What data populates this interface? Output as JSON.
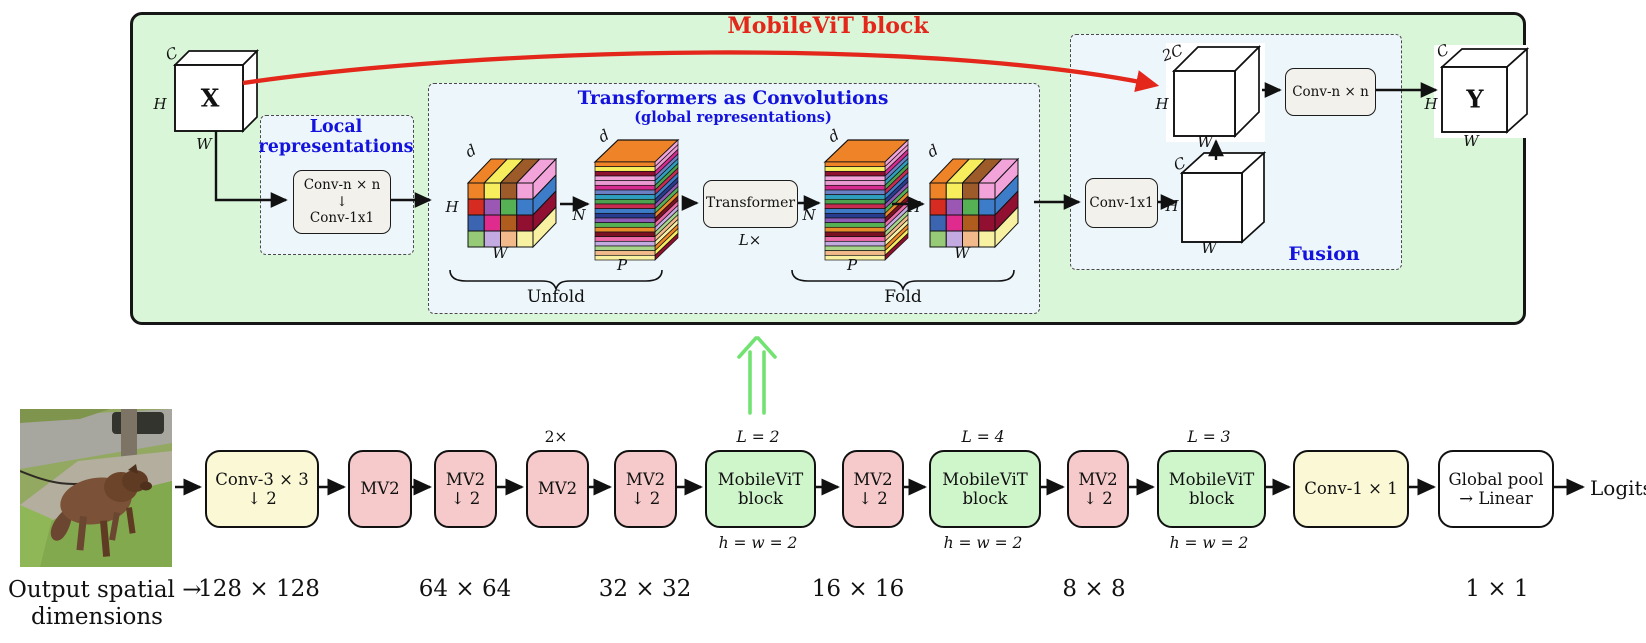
{
  "figure": {
    "title": "MobileViT block"
  },
  "labels": {
    "C": "C",
    "twoC": "2C",
    "H": "H",
    "W": "W",
    "N": "N",
    "P": "P",
    "d": "d",
    "X": "X",
    "Y": "Y"
  },
  "local": {
    "title1": "Local",
    "title2": "representations",
    "conv1": "Conv-n × n",
    "down": "↓",
    "conv2": "Conv-1x1"
  },
  "global": {
    "title": "Transformers as Convolutions",
    "subtitle": "(global representations)",
    "transformer": "Transformer",
    "repeat": "L×",
    "unfold": "Unfold",
    "fold": "Fold"
  },
  "fusion": {
    "title": "Fusion",
    "conv1x1": "Conv-1x1",
    "convnxn": "Conv-n × n"
  },
  "pipeline": {
    "stages": [
      {
        "l1": "Conv-3 × 3",
        "l2": "↓ 2"
      },
      {
        "l1": "MV2"
      },
      {
        "l1": "MV2",
        "l2": "↓ 2"
      },
      {
        "l1": "MV2",
        "above": "2×"
      },
      {
        "l1": "MV2",
        "l2": "↓ 2"
      },
      {
        "l1": "MobileViT",
        "l2": "block",
        "above": "L = 2",
        "below": "h = w = 2"
      },
      {
        "l1": "MV2",
        "l2": "↓ 2"
      },
      {
        "l1": "MobileViT",
        "l2": "block",
        "above": "L = 4",
        "below": "h = w = 2"
      },
      {
        "l1": "MV2",
        "l2": "↓ 2"
      },
      {
        "l1": "MobileViT",
        "l2": "block",
        "above": "L = 3",
        "below": "h = w = 2"
      },
      {
        "l1": "Conv-1 × 1"
      },
      {
        "l1": "Global pool",
        "l2": "→ Linear"
      }
    ],
    "output": "Logits"
  },
  "dimensions": {
    "caption1": "Output spatial →",
    "caption2": "dimensions",
    "values": [
      "128 × 128",
      "64 × 64",
      "32 × 32",
      "16 × 16",
      "8 × 8",
      "1 × 1"
    ]
  },
  "palettes": {
    "background_green": "#d9f6d8",
    "dashed_fill": "#edf6fb",
    "title_red": "#e3271b",
    "title_blue": "#1313dd",
    "arrow_red": "#e3271b",
    "arrow_green": "#72e372",
    "stage_yellow": "#fbf8d6",
    "stage_pink": "#f6caca",
    "stage_green": "#cff5cb",
    "cube_front": [
      "#ef8327",
      "#f6ee5c",
      "#9c5b28",
      "#f2a3d9",
      "#d62b21",
      "#9a57b3",
      "#55b154",
      "#3d7cc9",
      "#3b64b1",
      "#df2a8e",
      "#b05c1f",
      "#911031",
      "#97ca77",
      "#c3abe2",
      "#f2ba8a",
      "#f8f1a2"
    ],
    "cube_top": [
      "#ef8327",
      "#f6ee5c",
      "#9c5b28",
      "#f2a3d9"
    ],
    "cube_right": [
      "#f2a3d9",
      "#3d7cc9",
      "#911031",
      "#f8f1a2"
    ],
    "stack_stripes": [
      "#ef8327",
      "#f6ee5c",
      "#8e1030",
      "#f2a3d9",
      "#ea9ad0",
      "#d62b8e",
      "#6b7fc4",
      "#2e9fbf",
      "#4ea14e",
      "#c92a52",
      "#3d7cc9",
      "#273c8e",
      "#8d5bb5",
      "#55b154",
      "#e98b2a",
      "#7a1022",
      "#ef6aa8",
      "#c3abe2",
      "#a6d48a",
      "#f2ba8a",
      "#f8f1a2"
    ]
  }
}
